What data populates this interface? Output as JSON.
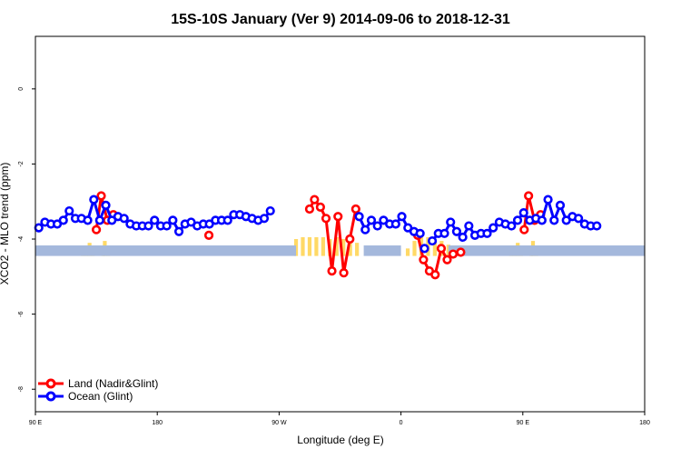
{
  "chart_data": {
    "type": "line",
    "title": "15S-10S January (Ver 9)   2014-09-06 to 2018-12-31",
    "xlabel": "Longitude (deg E)",
    "ylabel": "XCO2 - MLO trend (ppm)",
    "xlim": [
      90,
      450
    ],
    "ylim": [
      -8.6,
      1.4
    ],
    "x_ticks": [
      {
        "value": 90,
        "label": "90 E"
      },
      {
        "value": 162,
        "label": "180"
      },
      {
        "value": 234,
        "label": "90 W"
      },
      {
        "value": 306,
        "label": "0"
      },
      {
        "value": 378,
        "label": "90 E"
      },
      {
        "value": 450,
        "label": "180"
      }
    ],
    "y_ticks": [
      {
        "value": 0,
        "label": "0"
      },
      {
        "value": -2,
        "label": "-2"
      },
      {
        "value": -4,
        "label": "-4"
      },
      {
        "value": -6,
        "label": "-6"
      },
      {
        "value": -8,
        "label": "-8"
      }
    ],
    "grid": false,
    "legend_position": "bottom-left",
    "series": [
      {
        "name": "Land (Nadir&Glint)",
        "color": "#ff0000",
        "segments": [
          [
            [
              126,
              -3.75
            ],
            [
              128.9,
              -2.85
            ],
            [
              132.5,
              -3.5
            ],
            [
              136,
              -3.35
            ]
          ],
          [
            [
              192.5,
              -3.9
            ]
          ],
          [
            [
              252,
              -3.2
            ],
            [
              254.9,
              -2.95
            ],
            [
              258.4,
              -3.15
            ],
            [
              261.7,
              -3.45
            ],
            [
              265.2,
              -4.85
            ],
            [
              268.8,
              -3.4
            ],
            [
              272.2,
              -4.9
            ],
            [
              275.8,
              -4.0
            ],
            [
              279.3,
              -3.2
            ]
          ],
          [
            [
              315.9,
              -3.9
            ],
            [
              319.3,
              -4.55
            ],
            [
              322.8,
              -4.85
            ],
            [
              326.2,
              -4.95
            ],
            [
              329.8,
              -4.25
            ],
            [
              333.3,
              -4.55
            ],
            [
              336.8,
              -4.4
            ],
            [
              341.3,
              -4.35
            ]
          ],
          [
            [
              378.8,
              -3.75
            ],
            [
              381.4,
              -2.85
            ],
            [
              384.9,
              -3.5
            ],
            [
              388.5,
              -3.35
            ]
          ]
        ]
      },
      {
        "name": "Ocean (Glint)",
        "color": "#0000ff",
        "segments": [
          [
            [
              92,
              -3.7
            ],
            [
              95.6,
              -3.55
            ],
            [
              99.2,
              -3.6
            ],
            [
              102.9,
              -3.6
            ],
            [
              106.5,
              -3.5
            ],
            [
              110,
              -3.25
            ],
            [
              113.6,
              -3.45
            ],
            [
              117.2,
              -3.45
            ],
            [
              120.9,
              -3.5
            ],
            [
              124.5,
              -2.95
            ],
            [
              128,
              -3.5
            ],
            [
              131.6,
              -3.1
            ],
            [
              135.2,
              -3.5
            ],
            [
              138.8,
              -3.4
            ],
            [
              142.4,
              -3.45
            ],
            [
              146,
              -3.6
            ],
            [
              149.6,
              -3.65
            ],
            [
              153.2,
              -3.65
            ],
            [
              156.8,
              -3.65
            ],
            [
              160.4,
              -3.5
            ],
            [
              164,
              -3.65
            ],
            [
              167.6,
              -3.65
            ],
            [
              171.2,
              -3.5
            ],
            [
              174.8,
              -3.8
            ],
            [
              178.4,
              -3.6
            ],
            [
              182,
              -3.55
            ],
            [
              185.6,
              -3.65
            ],
            [
              189.2,
              -3.6
            ],
            [
              192.8,
              -3.6
            ],
            [
              196.4,
              -3.5
            ],
            [
              200,
              -3.5
            ],
            [
              203.6,
              -3.5
            ],
            [
              207.2,
              -3.35
            ],
            [
              210.8,
              -3.35
            ],
            [
              214.4,
              -3.4
            ],
            [
              218,
              -3.45
            ],
            [
              221.6,
              -3.5
            ],
            [
              225.2,
              -3.45
            ],
            [
              228.8,
              -3.25
            ]
          ],
          [
            [
              281.3,
              -3.4
            ],
            [
              284.9,
              -3.75
            ],
            [
              288.5,
              -3.5
            ],
            [
              292.1,
              -3.65
            ],
            [
              295.7,
              -3.5
            ],
            [
              299.3,
              -3.6
            ],
            [
              302.9,
              -3.6
            ],
            [
              306.5,
              -3.4
            ],
            [
              310.1,
              -3.7
            ],
            [
              313.7,
              -3.8
            ],
            [
              317.3,
              -3.85
            ]
          ],
          [
            [
              319.9,
              -4.25
            ]
          ],
          [
            [
              324.5,
              -4.05
            ],
            [
              328.1,
              -3.85
            ],
            [
              331.7,
              -3.85
            ],
            [
              335.3,
              -3.55
            ],
            [
              338.9,
              -3.8
            ],
            [
              342.5,
              -3.95
            ],
            [
              346.1,
              -3.65
            ],
            [
              349.7,
              -3.9
            ],
            [
              353.3,
              -3.85
            ],
            [
              356.9,
              -3.85
            ],
            [
              360.5,
              -3.7
            ],
            [
              364.1,
              -3.55
            ],
            [
              367.7,
              -3.6
            ],
            [
              371.3,
              -3.65
            ],
            [
              374.9,
              -3.5
            ],
            [
              378.5,
              -3.3
            ],
            [
              382.1,
              -3.5
            ],
            [
              385.7,
              -3.45
            ],
            [
              389.3,
              -3.5
            ],
            [
              392.9,
              -2.95
            ],
            [
              396.5,
              -3.5
            ],
            [
              400.1,
              -3.1
            ],
            [
              403.7,
              -3.5
            ],
            [
              407.3,
              -3.4
            ],
            [
              410.9,
              -3.45
            ],
            [
              414.5,
              -3.6
            ],
            [
              418.1,
              -3.65
            ],
            [
              421.7,
              -3.65
            ]
          ]
        ]
      }
    ],
    "ocean_band": {
      "color": "#a4b8dc",
      "y_range": [
        -4.45,
        -4.17
      ]
    },
    "land_bars": {
      "color": "#ffd966",
      "baseline": -4.45,
      "values": [
        [
          118,
          -4.3
        ],
        [
          120,
          -4.25
        ],
        [
          122,
          -4.1
        ],
        [
          124,
          -4.25
        ],
        [
          130,
          -4.2
        ],
        [
          131,
          -4.05
        ],
        [
          133,
          -4.3
        ],
        [
          244,
          -4.0
        ],
        [
          248,
          -3.95
        ],
        [
          252,
          -3.95
        ],
        [
          256,
          -3.95
        ],
        [
          260,
          -3.95
        ],
        [
          264,
          -4.0
        ],
        [
          268,
          -3.95
        ],
        [
          272,
          -4.0
        ],
        [
          276,
          -4.0
        ],
        [
          280,
          -4.1
        ],
        [
          310,
          -4.25
        ],
        [
          314,
          -4.05
        ],
        [
          318,
          -3.95
        ],
        [
          322,
          -3.95
        ],
        [
          326,
          -4.0
        ],
        [
          330,
          -4.05
        ],
        [
          334,
          -4.15
        ],
        [
          371,
          -4.3
        ],
        [
          373,
          -4.25
        ],
        [
          375,
          -4.1
        ],
        [
          377,
          -4.25
        ],
        [
          383,
          -4.2
        ],
        [
          384,
          -4.05
        ],
        [
          386,
          -4.3
        ]
      ]
    }
  }
}
